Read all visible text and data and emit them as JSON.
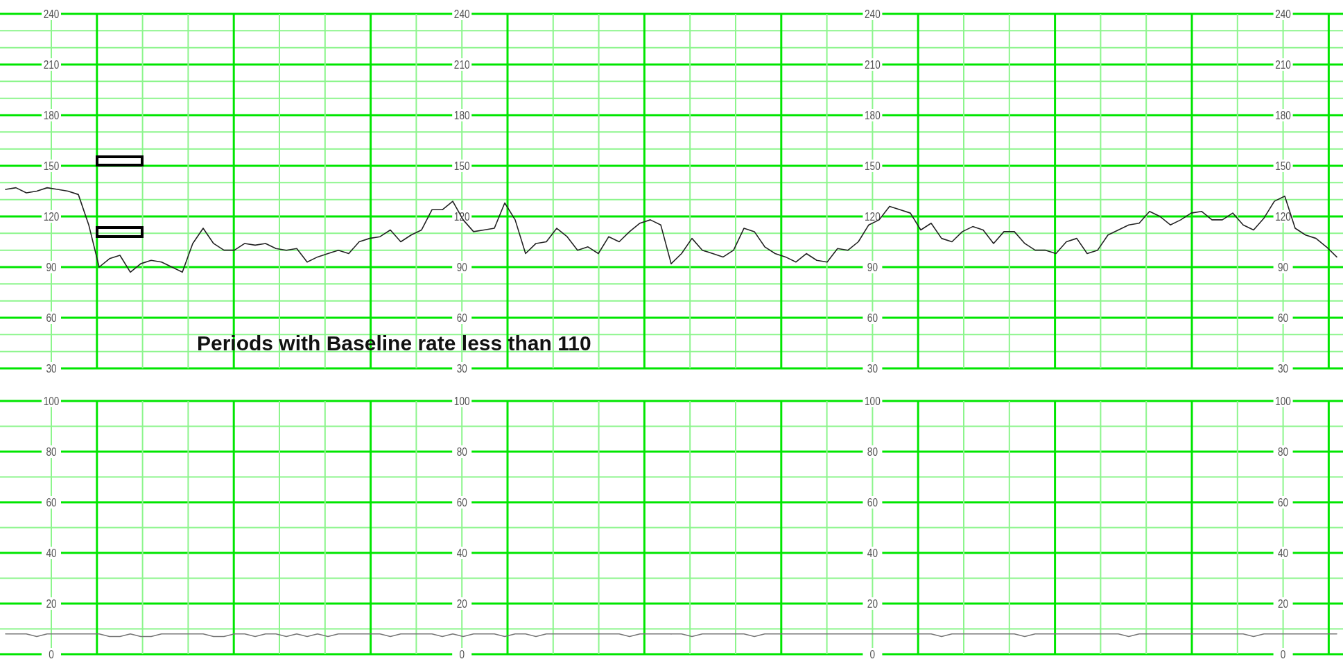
{
  "chart_data": [
    {
      "type": "line",
      "categories": [
        null,
        null,
        null,
        null,
        null,
        null,
        null,
        null,
        null,
        null,
        null,
        null,
        null,
        null,
        null,
        null,
        null,
        null,
        null,
        null,
        null,
        null,
        null,
        null,
        null,
        null,
        null,
        null,
        null,
        null,
        null,
        null,
        null,
        null,
        null,
        null,
        null,
        null,
        null,
        null,
        null,
        null,
        null,
        null,
        null,
        null,
        null,
        null,
        null,
        null,
        null,
        null,
        null,
        null,
        null,
        null,
        null,
        null,
        null,
        null,
        null,
        null,
        null,
        null,
        null
      ],
      "series": [
        {
          "color": "#222222",
          "values": [
            136,
            137,
            134,
            135,
            137,
            136,
            135,
            133,
            115,
            90,
            95,
            97,
            87,
            92,
            94,
            93,
            90,
            87,
            104,
            113,
            104,
            100,
            100,
            104,
            103,
            104,
            101,
            100,
            101,
            93,
            96,
            98,
            100,
            98,
            105,
            107,
            108,
            112,
            105,
            109,
            112,
            124,
            124,
            129,
            118,
            111,
            112,
            113,
            128,
            118,
            98,
            104,
            105,
            113,
            108,
            100,
            102,
            98,
            108,
            105,
            111,
            116,
            118,
            115,
            92
          ]
        }
      ],
      "ylim": [
        30,
        240
      ],
      "yticks": [
        30,
        {
          "value": 40,
          "label": null
        },
        {
          "value": 50,
          "label": null
        },
        60,
        {
          "value": 70,
          "label": null
        },
        {
          "value": 80,
          "label": null
        },
        90,
        {
          "value": 100,
          "label": null
        },
        {
          "value": 110,
          "label": null
        },
        120,
        {
          "value": 130,
          "label": null
        },
        {
          "value": 140,
          "label": null
        },
        150,
        {
          "value": 160,
          "label": null
        },
        {
          "value": 170,
          "label": null
        },
        180,
        {
          "value": 190,
          "label": null
        },
        {
          "value": 200,
          "label": null
        },
        210,
        {
          "value": 220,
          "label": null
        },
        {
          "value": 230,
          "label": null
        },
        240
      ],
      "y2lim": [
        30,
        240
      ],
      "y2ticks": [
        30,
        60,
        90,
        120,
        150,
        180,
        210,
        240
      ],
      "grid": true,
      "tick_labels": "y",
      "annotations": [
        "Periods with Baseline rate less than 110"
      ]
    },
    {
      "type": "line",
      "categories": [
        null,
        null,
        null,
        null,
        null,
        null,
        null,
        null,
        null,
        null,
        null,
        null,
        null,
        null,
        null,
        null,
        null,
        null,
        null,
        null,
        null,
        null,
        null,
        null,
        null,
        null,
        null,
        null,
        null,
        null,
        null,
        null,
        null,
        null,
        null,
        null,
        null,
        null,
        null,
        null,
        null,
        null,
        null,
        null,
        null,
        null,
        null,
        null,
        null,
        null,
        null,
        null,
        null,
        null,
        null,
        null,
        null,
        null,
        null,
        null,
        null,
        null,
        null,
        null,
        null
      ],
      "series": [
        {
          "color": "#222222",
          "values": [
            92,
            98,
            107,
            100,
            98,
            96,
            100,
            113,
            111,
            102,
            98,
            96,
            93,
            98,
            94,
            93,
            101,
            100,
            105,
            115,
            118,
            126,
            124,
            122,
            112,
            116,
            107,
            105,
            111,
            114,
            112,
            104,
            111,
            111,
            104,
            100,
            100,
            98,
            105,
            107,
            98,
            100,
            109,
            112,
            115,
            116,
            123,
            120,
            115,
            118,
            122,
            123,
            118,
            118,
            122,
            115,
            112,
            119,
            129,
            132,
            113,
            109,
            107,
            102,
            96
          ]
        }
      ],
      "ylim": [
        30,
        240
      ],
      "yticks": [
        30,
        {
          "value": 40,
          "label": null
        },
        {
          "value": 50,
          "label": null
        },
        60,
        {
          "value": 70,
          "label": null
        },
        {
          "value": 80,
          "label": null
        },
        90,
        {
          "value": 100,
          "label": null
        },
        {
          "value": 110,
          "label": null
        },
        120,
        {
          "value": 130,
          "label": null
        },
        {
          "value": 140,
          "label": null
        },
        150,
        {
          "value": 160,
          "label": null
        },
        {
          "value": 170,
          "label": null
        },
        180,
        {
          "value": 190,
          "label": null
        },
        {
          "value": 200,
          "label": null
        },
        210,
        {
          "value": 220,
          "label": null
        },
        {
          "value": 230,
          "label": null
        },
        240
      ],
      "y2lim": [
        30,
        240
      ],
      "y2ticks": [
        30,
        60,
        90,
        120,
        150,
        180,
        210,
        240
      ],
      "grid": true,
      "tick_labels": "y"
    },
    {
      "type": "line",
      "categories": [
        null,
        null,
        null,
        null,
        null,
        null,
        null,
        null,
        null,
        null,
        null,
        null,
        null,
        null,
        null,
        null,
        null,
        null,
        null,
        null,
        null,
        null,
        null,
        null,
        null,
        null,
        null,
        null,
        null,
        null,
        null,
        null,
        null,
        null,
        null,
        null,
        null,
        null,
        null,
        null,
        null,
        null,
        null,
        null,
        null,
        null,
        null,
        null,
        null,
        null,
        null,
        null,
        null,
        null,
        null,
        null,
        null,
        null,
        null,
        null,
        null,
        null,
        null,
        null,
        null
      ],
      "series": [
        {
          "color": "#777777",
          "values": [
            8,
            8,
            8,
            7,
            8,
            8,
            8,
            8,
            8,
            8,
            7,
            7,
            8,
            7,
            7,
            8,
            8,
            8,
            8,
            8,
            7,
            7,
            8,
            8,
            7,
            8,
            8,
            7,
            8,
            7,
            8,
            7,
            8,
            8,
            8,
            8,
            8,
            7,
            8,
            8,
            8,
            8,
            7,
            8,
            7,
            8,
            8,
            8,
            7,
            8,
            8,
            7,
            8,
            8,
            8,
            8,
            8,
            8,
            8,
            8,
            7,
            8,
            8,
            8,
            8
          ]
        }
      ],
      "ylim": [
        0,
        100
      ],
      "yticks": [
        0,
        {
          "value": 10,
          "label": null
        },
        20,
        {
          "value": 30,
          "label": null
        },
        40,
        {
          "value": 50,
          "label": null
        },
        60,
        {
          "value": 70,
          "label": null
        },
        80,
        {
          "value": 90,
          "label": null
        },
        100
      ],
      "y2lim": [
        0,
        100
      ],
      "y2ticks": [
        0,
        20,
        40,
        60,
        80,
        100
      ],
      "grid": true,
      "tick_labels": "y"
    },
    {
      "type": "line",
      "categories": [
        null,
        null,
        null,
        null,
        null,
        null,
        null,
        null,
        null,
        null,
        null,
        null,
        null,
        null,
        null,
        null,
        null,
        null,
        null,
        null,
        null,
        null,
        null,
        null,
        null,
        null,
        null,
        null,
        null,
        null,
        null,
        null,
        null,
        null,
        null,
        null,
        null,
        null,
        null,
        null,
        null,
        null,
        null,
        null,
        null,
        null,
        null,
        null,
        null,
        null,
        null,
        null,
        null,
        null,
        null,
        null,
        null,
        null,
        null,
        null,
        null,
        null,
        null,
        null,
        null
      ],
      "series": [
        {
          "color": "#777777",
          "values": [
            8,
            8,
            7,
            8,
            8,
            8,
            8,
            8,
            7,
            8,
            8,
            8,
            8,
            8,
            8,
            8,
            8,
            8,
            8,
            8,
            8,
            8,
            8,
            8,
            8,
            8,
            7,
            8,
            8,
            8,
            8,
            8,
            8,
            8,
            7,
            8,
            8,
            8,
            8,
            8,
            8,
            8,
            8,
            8,
            7,
            8,
            8,
            8,
            8,
            8,
            8,
            8,
            8,
            8,
            8,
            8,
            7,
            8,
            8,
            8,
            8,
            8,
            8,
            8,
            8
          ]
        }
      ],
      "ylim": [
        0,
        100
      ],
      "yticks": [
        0,
        {
          "value": 10,
          "label": null
        },
        20,
        {
          "value": 30,
          "label": null
        },
        40,
        {
          "value": 50,
          "label": null
        },
        60,
        {
          "value": 70,
          "label": null
        },
        80,
        {
          "value": 90,
          "label": null
        },
        100
      ],
      "y2lim": [
        0,
        100
      ],
      "y2ticks": [
        0,
        20,
        40,
        60,
        80,
        100
      ],
      "grid": true,
      "tick_labels": "y"
    }
  ]
}
